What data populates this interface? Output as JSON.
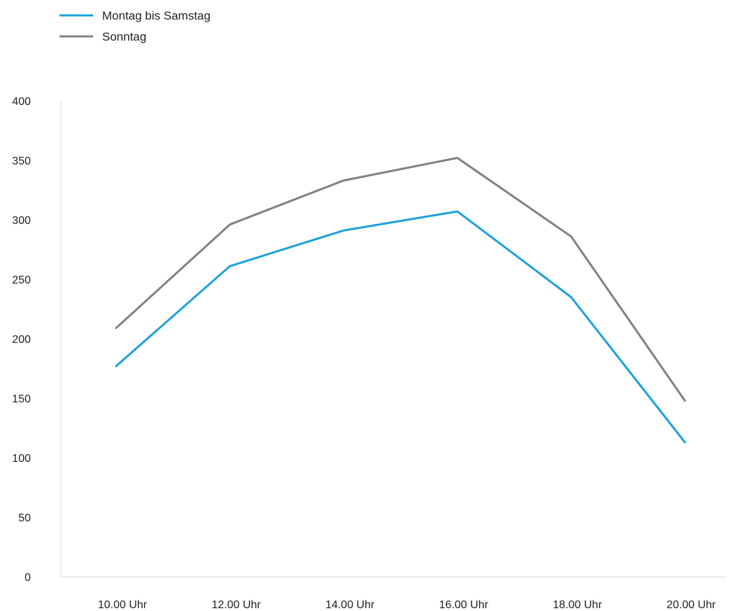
{
  "chart_data": {
    "type": "line",
    "categories": [
      "10.00 Uhr",
      "12.00 Uhr",
      "14.00 Uhr",
      "16.00 Uhr",
      "18.00 Uhr",
      "20.00 Uhr"
    ],
    "series": [
      {
        "name": "Montag bis Samstag",
        "color": "#1ba1d9",
        "values": [
          177,
          261,
          291,
          307,
          235,
          113
        ]
      },
      {
        "name": "Sonntag",
        "color": "#808080",
        "values": [
          209,
          296,
          333,
          352,
          286,
          148
        ]
      }
    ],
    "yticks": [
      "0",
      "50",
      "100",
      "150",
      "200",
      "250",
      "300",
      "350",
      "400"
    ],
    "ylim": [
      0,
      400
    ],
    "grid": false,
    "legend_position": "top-left"
  }
}
